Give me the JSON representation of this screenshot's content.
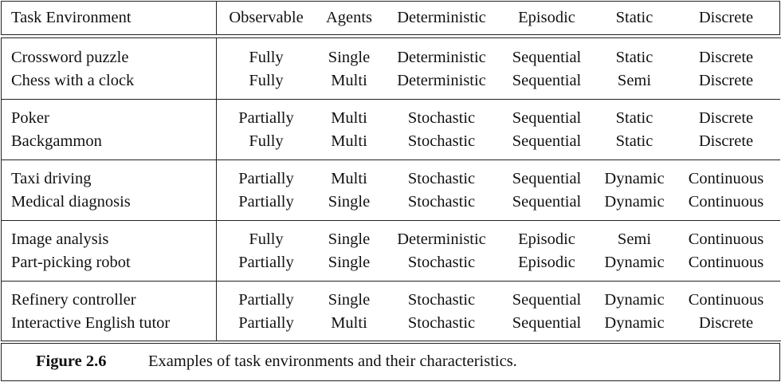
{
  "table": {
    "headers": [
      "Task Environment",
      "Observable",
      "Agents",
      "Deterministic",
      "Episodic",
      "Static",
      "Discrete"
    ],
    "groups": [
      {
        "rows": [
          [
            "Crossword puzzle",
            "Fully",
            "Single",
            "Deterministic",
            "Sequential",
            "Static",
            "Discrete"
          ],
          [
            "Chess with a clock",
            "Fully",
            "Multi",
            "Deterministic",
            "Sequential",
            "Semi",
            "Discrete"
          ]
        ]
      },
      {
        "rows": [
          [
            "Poker",
            "Partially",
            "Multi",
            "Stochastic",
            "Sequential",
            "Static",
            "Discrete"
          ],
          [
            "Backgammon",
            "Fully",
            "Multi",
            "Stochastic",
            "Sequential",
            "Static",
            "Discrete"
          ]
        ]
      },
      {
        "rows": [
          [
            "Taxi driving",
            "Partially",
            "Multi",
            "Stochastic",
            "Sequential",
            "Dynamic",
            "Continuous"
          ],
          [
            "Medical diagnosis",
            "Partially",
            "Single",
            "Stochastic",
            "Sequential",
            "Dynamic",
            "Continuous"
          ]
        ]
      },
      {
        "rows": [
          [
            "Image analysis",
            "Fully",
            "Single",
            "Deterministic",
            "Episodic",
            "Semi",
            "Continuous"
          ],
          [
            "Part-picking robot",
            "Partially",
            "Single",
            "Stochastic",
            "Episodic",
            "Dynamic",
            "Continuous"
          ]
        ]
      },
      {
        "rows": [
          [
            "Refinery controller",
            "Partially",
            "Single",
            "Stochastic",
            "Sequential",
            "Dynamic",
            "Continuous"
          ],
          [
            "Interactive English tutor",
            "Partially",
            "Multi",
            "Stochastic",
            "Sequential",
            "Dynamic",
            "Discrete"
          ]
        ]
      }
    ]
  },
  "caption": {
    "label": "Figure 2.6",
    "text": "Examples of task environments and their characteristics."
  }
}
